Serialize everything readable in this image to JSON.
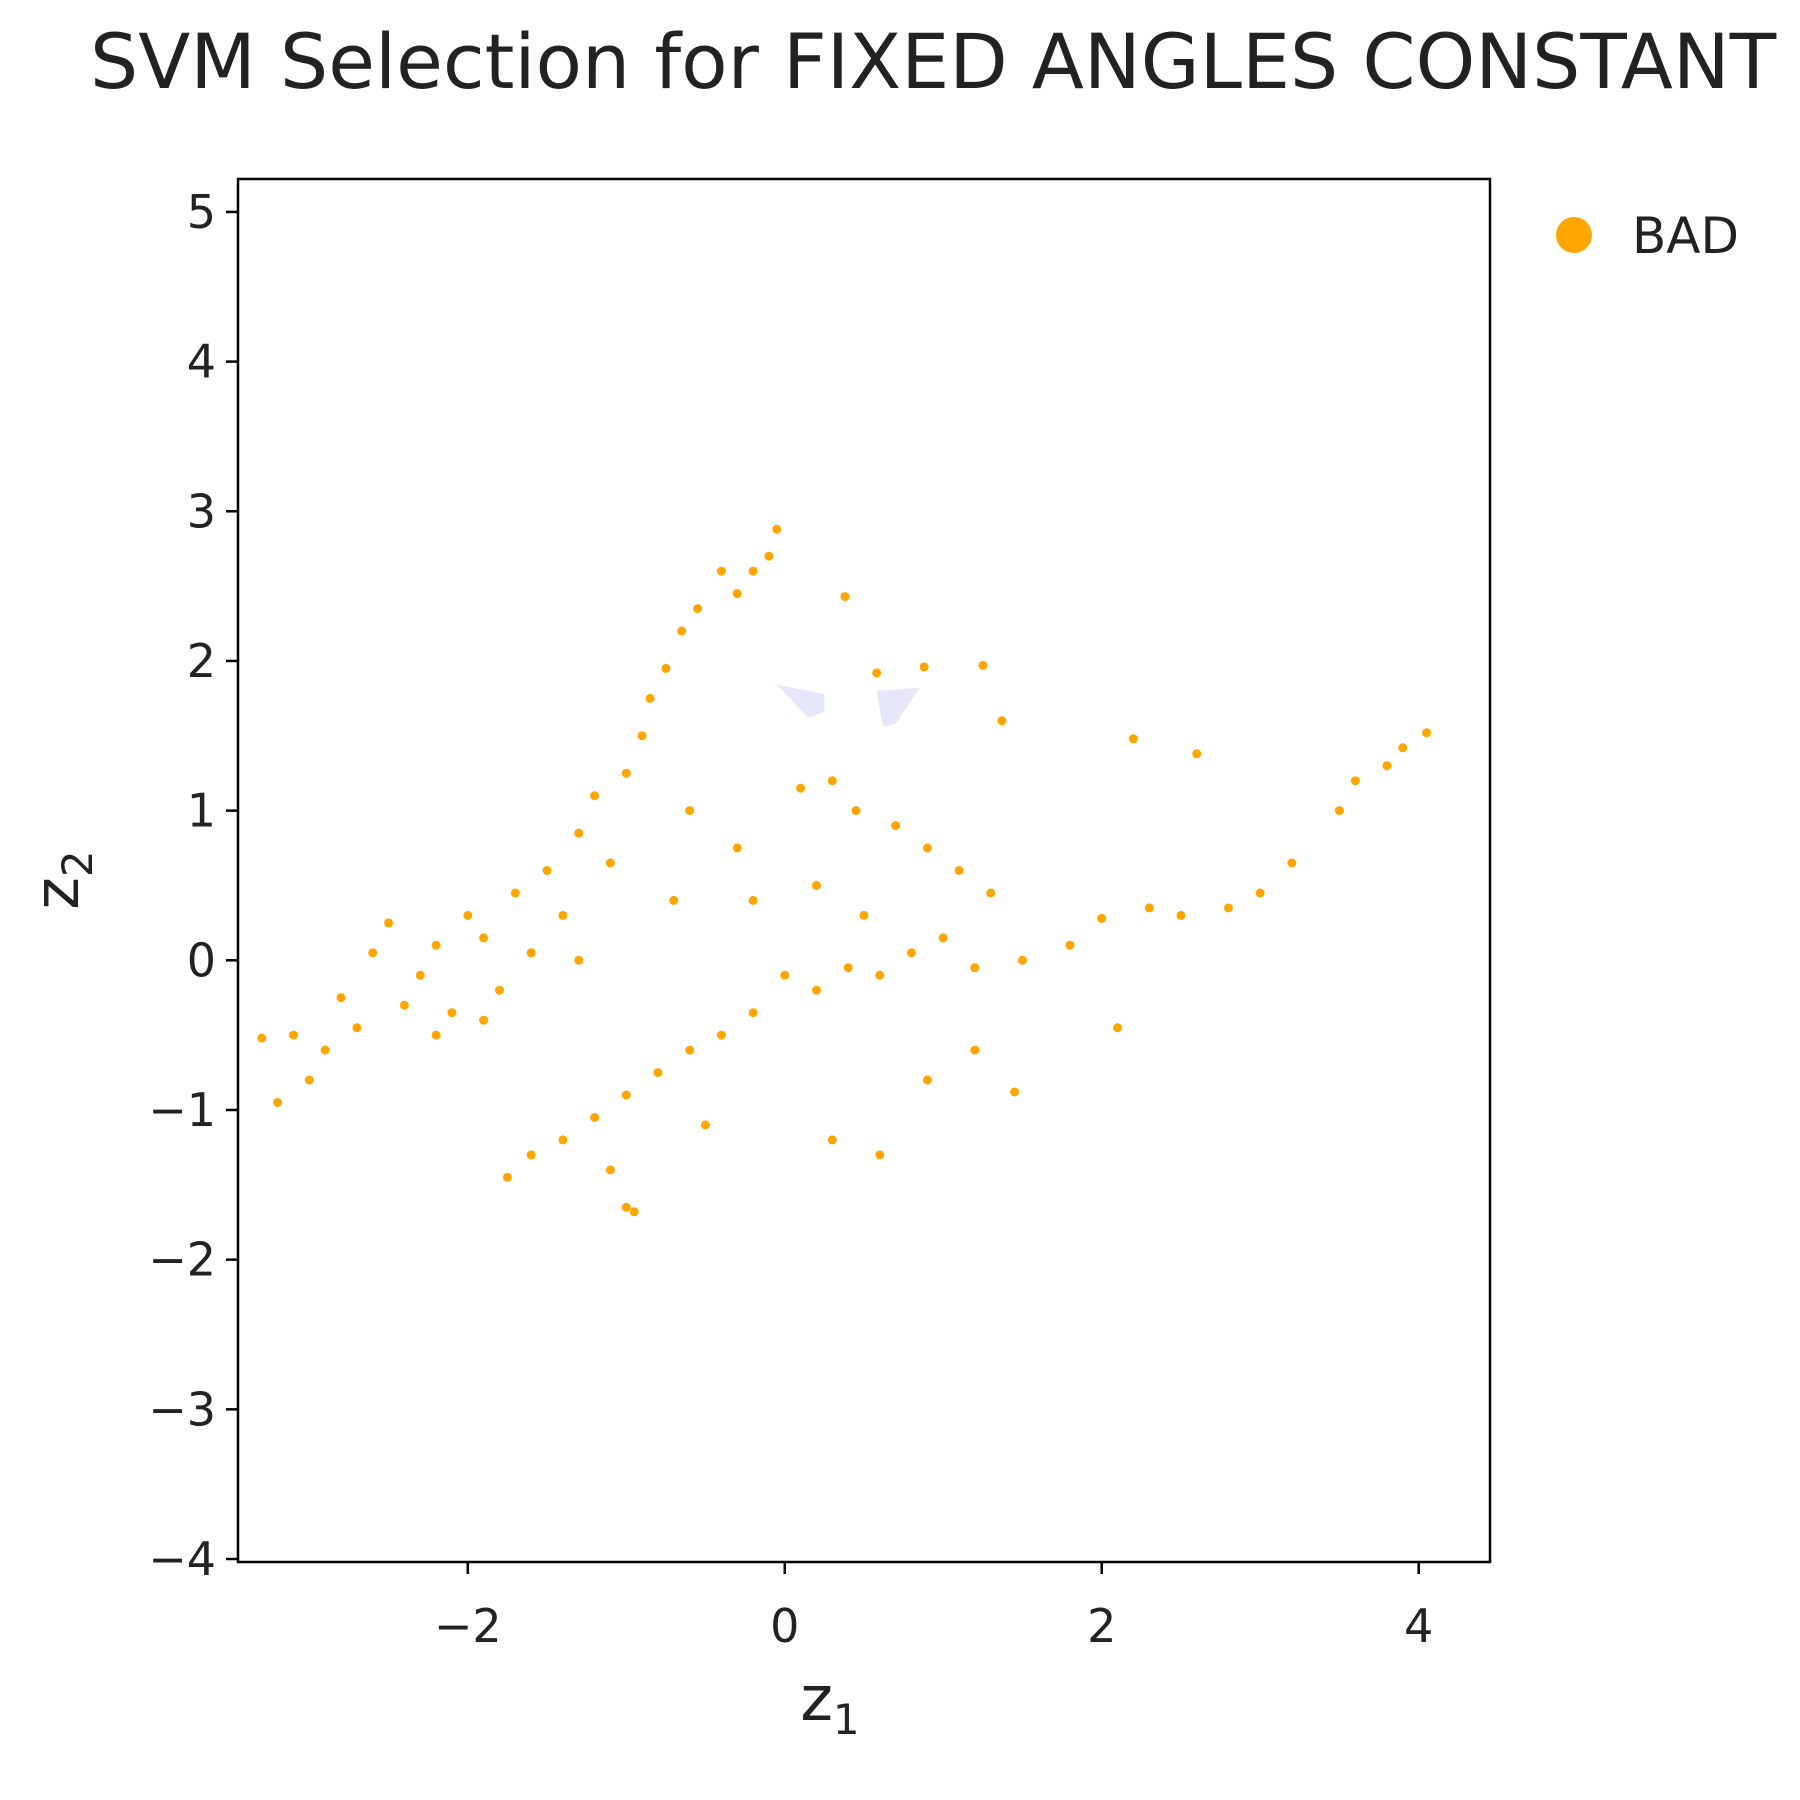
{
  "chart_data": {
    "type": "scatter",
    "title": "SVM Selection for FIXED ANGLES CONSTANT",
    "xlabel": {
      "base": "z",
      "sub": "1"
    },
    "ylabel": {
      "base": "z",
      "sub": "2"
    },
    "xlim": [
      -3.45,
      4.45
    ],
    "ylim": [
      -4.02,
      5.22
    ],
    "x_ticks": [
      -2,
      0,
      2,
      4
    ],
    "y_ticks": [
      -4,
      -3,
      -2,
      -1,
      0,
      1,
      2,
      3,
      4,
      5
    ],
    "x_tick_labels": [
      "−2",
      "0",
      "2",
      "4"
    ],
    "y_tick_labels": [
      "−4",
      "−3",
      "−2",
      "−1",
      "0",
      "1",
      "2",
      "3",
      "4",
      "5"
    ],
    "legend": {
      "position": "top-right",
      "entries": [
        "BAD"
      ]
    },
    "colors": {
      "bad": "#FFA500",
      "svm_region": "#E6E6FA",
      "axes": "#000000",
      "text": "#222222"
    },
    "grid": false,
    "series": [
      {
        "name": "BAD",
        "points": [
          [
            -3.3,
            -0.52
          ],
          [
            -3.2,
            -0.95
          ],
          [
            -3.1,
            -0.5
          ],
          [
            -3.0,
            -0.8
          ],
          [
            -2.9,
            -0.6
          ],
          [
            -2.8,
            -0.25
          ],
          [
            -2.7,
            -0.45
          ],
          [
            -2.6,
            0.05
          ],
          [
            -2.5,
            0.25
          ],
          [
            -2.4,
            -0.3
          ],
          [
            -2.3,
            -0.1
          ],
          [
            -2.2,
            0.1
          ],
          [
            -2.1,
            -0.35
          ],
          [
            -2.0,
            0.3
          ],
          [
            -1.9,
            0.15
          ],
          [
            -1.8,
            -0.2
          ],
          [
            -1.7,
            0.45
          ],
          [
            -1.6,
            0.05
          ],
          [
            -1.5,
            0.6
          ],
          [
            -1.4,
            0.3
          ],
          [
            -1.3,
            0.85
          ],
          [
            -1.2,
            1.1
          ],
          [
            -1.1,
            0.65
          ],
          [
            -1.0,
            1.25
          ],
          [
            -0.9,
            1.5
          ],
          [
            -0.85,
            1.75
          ],
          [
            -0.75,
            1.95
          ],
          [
            -0.65,
            2.2
          ],
          [
            -0.55,
            2.35
          ],
          [
            -0.4,
            2.6
          ],
          [
            -0.3,
            2.45
          ],
          [
            -0.2,
            2.6
          ],
          [
            -0.1,
            2.7
          ],
          [
            -0.05,
            2.88
          ],
          [
            0.38,
            2.43
          ],
          [
            0.58,
            1.92
          ],
          [
            0.88,
            1.96
          ],
          [
            1.25,
            1.97
          ],
          [
            1.37,
            1.6
          ],
          [
            2.2,
            1.48
          ],
          [
            2.6,
            1.38
          ],
          [
            3.6,
            1.2
          ],
          [
            3.8,
            1.3
          ],
          [
            4.05,
            1.52
          ],
          [
            3.9,
            1.42
          ],
          [
            3.5,
            1.0
          ],
          [
            3.2,
            0.65
          ],
          [
            3.0,
            0.45
          ],
          [
            2.8,
            0.35
          ],
          [
            2.5,
            0.3
          ],
          [
            2.3,
            0.35
          ],
          [
            2.0,
            0.28
          ],
          [
            1.8,
            0.1
          ],
          [
            1.5,
            0.0
          ],
          [
            1.2,
            -0.05
          ],
          [
            1.0,
            0.15
          ],
          [
            0.8,
            0.05
          ],
          [
            0.6,
            -0.1
          ],
          [
            0.4,
            -0.05
          ],
          [
            0.2,
            -0.2
          ],
          [
            0.0,
            -0.1
          ],
          [
            -0.2,
            -0.35
          ],
          [
            -0.4,
            -0.5
          ],
          [
            -0.6,
            -0.6
          ],
          [
            -0.8,
            -0.75
          ],
          [
            -1.0,
            -0.9
          ],
          [
            -1.2,
            -1.05
          ],
          [
            -1.4,
            -1.2
          ],
          [
            -1.6,
            -1.3
          ],
          [
            -1.75,
            -1.45
          ],
          [
            -1.0,
            -1.65
          ],
          [
            -0.95,
            -1.68
          ],
          [
            -1.1,
            -1.4
          ],
          [
            -0.5,
            -1.1
          ],
          [
            0.3,
            -1.2
          ],
          [
            0.6,
            -1.3
          ],
          [
            1.45,
            -0.88
          ],
          [
            2.1,
            -0.45
          ],
          [
            0.9,
            -0.8
          ],
          [
            1.2,
            -0.6
          ],
          [
            -0.3,
            0.75
          ],
          [
            0.1,
            1.15
          ],
          [
            0.3,
            1.2
          ],
          [
            0.45,
            1.0
          ],
          [
            0.7,
            0.9
          ],
          [
            0.9,
            0.75
          ],
          [
            1.1,
            0.6
          ],
          [
            1.3,
            0.45
          ],
          [
            -0.6,
            1.0
          ],
          [
            -0.2,
            0.4
          ],
          [
            0.2,
            0.5
          ],
          [
            0.5,
            0.3
          ],
          [
            -0.7,
            0.4
          ],
          [
            -1.3,
            0.0
          ],
          [
            -1.9,
            -0.4
          ],
          [
            -2.2,
            -0.5
          ]
        ]
      }
    ],
    "svm_regions": [
      [
        [
          -0.05,
          1.84
        ],
        [
          0.25,
          1.78
        ],
        [
          0.25,
          1.66
        ],
        [
          0.15,
          1.62
        ]
      ],
      [
        [
          0.58,
          1.8
        ],
        [
          0.85,
          1.82
        ],
        [
          0.7,
          1.58
        ],
        [
          0.62,
          1.56
        ]
      ]
    ]
  }
}
